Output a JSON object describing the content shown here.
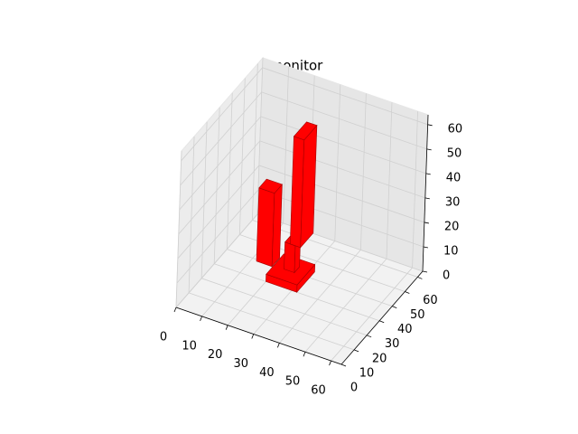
{
  "chart_data": {
    "type": "voxel",
    "title": "monitor",
    "xlim": [
      0,
      64
    ],
    "ylim": [
      0,
      64
    ],
    "zlim": [
      0,
      64
    ],
    "xticks": [
      0,
      10,
      20,
      30,
      40,
      50,
      60
    ],
    "yticks": [
      0,
      10,
      20,
      30,
      40,
      50,
      60
    ],
    "zticks": [
      0,
      10,
      20,
      30,
      40,
      50,
      60
    ],
    "grid": true,
    "color": "#ff0000",
    "boxes": [
      {
        "x": [
          20,
          32
        ],
        "y": [
          30,
          44
        ],
        "z": [
          0,
          3
        ]
      },
      {
        "x": [
          24,
          28
        ],
        "y": [
          36,
          40
        ],
        "z": [
          3,
          14
        ]
      },
      {
        "x": [
          26,
          30
        ],
        "y": [
          36,
          46
        ],
        "z": [
          14,
          58
        ]
      },
      {
        "x": [
          18,
          24
        ],
        "y": [
          26,
          32
        ],
        "z": [
          10,
          40
        ]
      }
    ]
  }
}
